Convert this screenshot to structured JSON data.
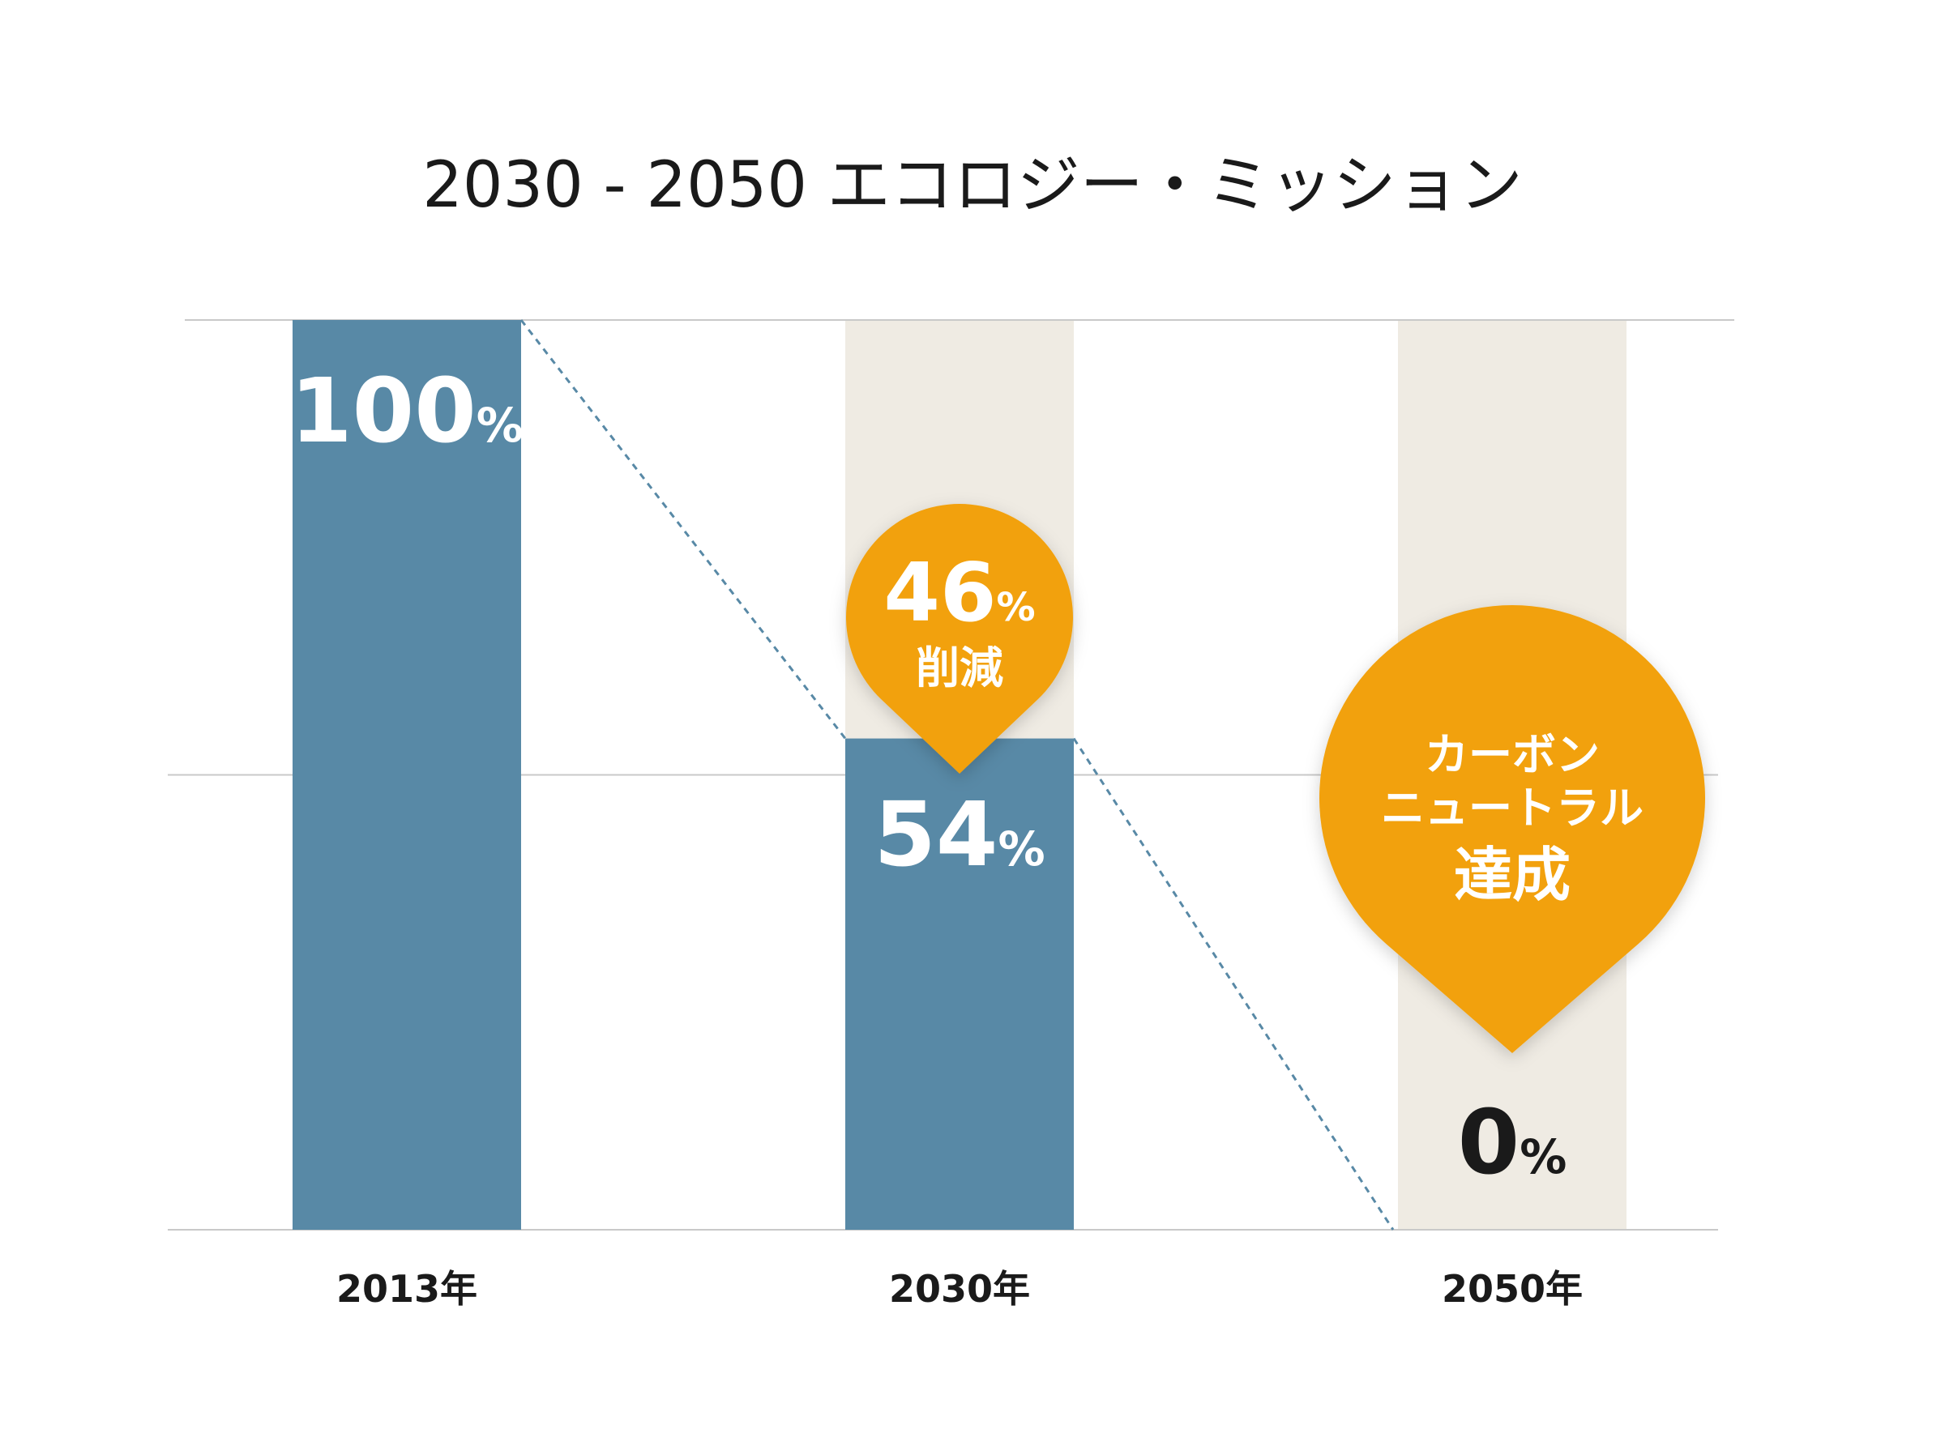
{
  "chart_data": {
    "type": "bar",
    "title": "2030 - 2050 エコロジー・ミッション",
    "categories": [
      "2013年",
      "2030年",
      "2050年"
    ],
    "values": [
      100,
      54,
      0
    ],
    "value_labels": [
      {
        "number": "100",
        "unit": "%"
      },
      {
        "number": "54",
        "unit": "%"
      },
      {
        "number": "0",
        "unit": "%"
      }
    ],
    "ylim": [
      0,
      100
    ],
    "grid": true,
    "annotations": [
      {
        "category": "2030年",
        "number": "46",
        "unit": "%",
        "text": "削減"
      },
      {
        "category": "2050年",
        "lines": [
          "カーボン",
          "ニュートラル",
          "達成"
        ]
      }
    ]
  },
  "colors": {
    "bar": "#5889a6",
    "background_column": "#efebe3",
    "callout": "#f2a10f",
    "trend_line": "#5889a6",
    "grid": "#c9c9c9"
  }
}
